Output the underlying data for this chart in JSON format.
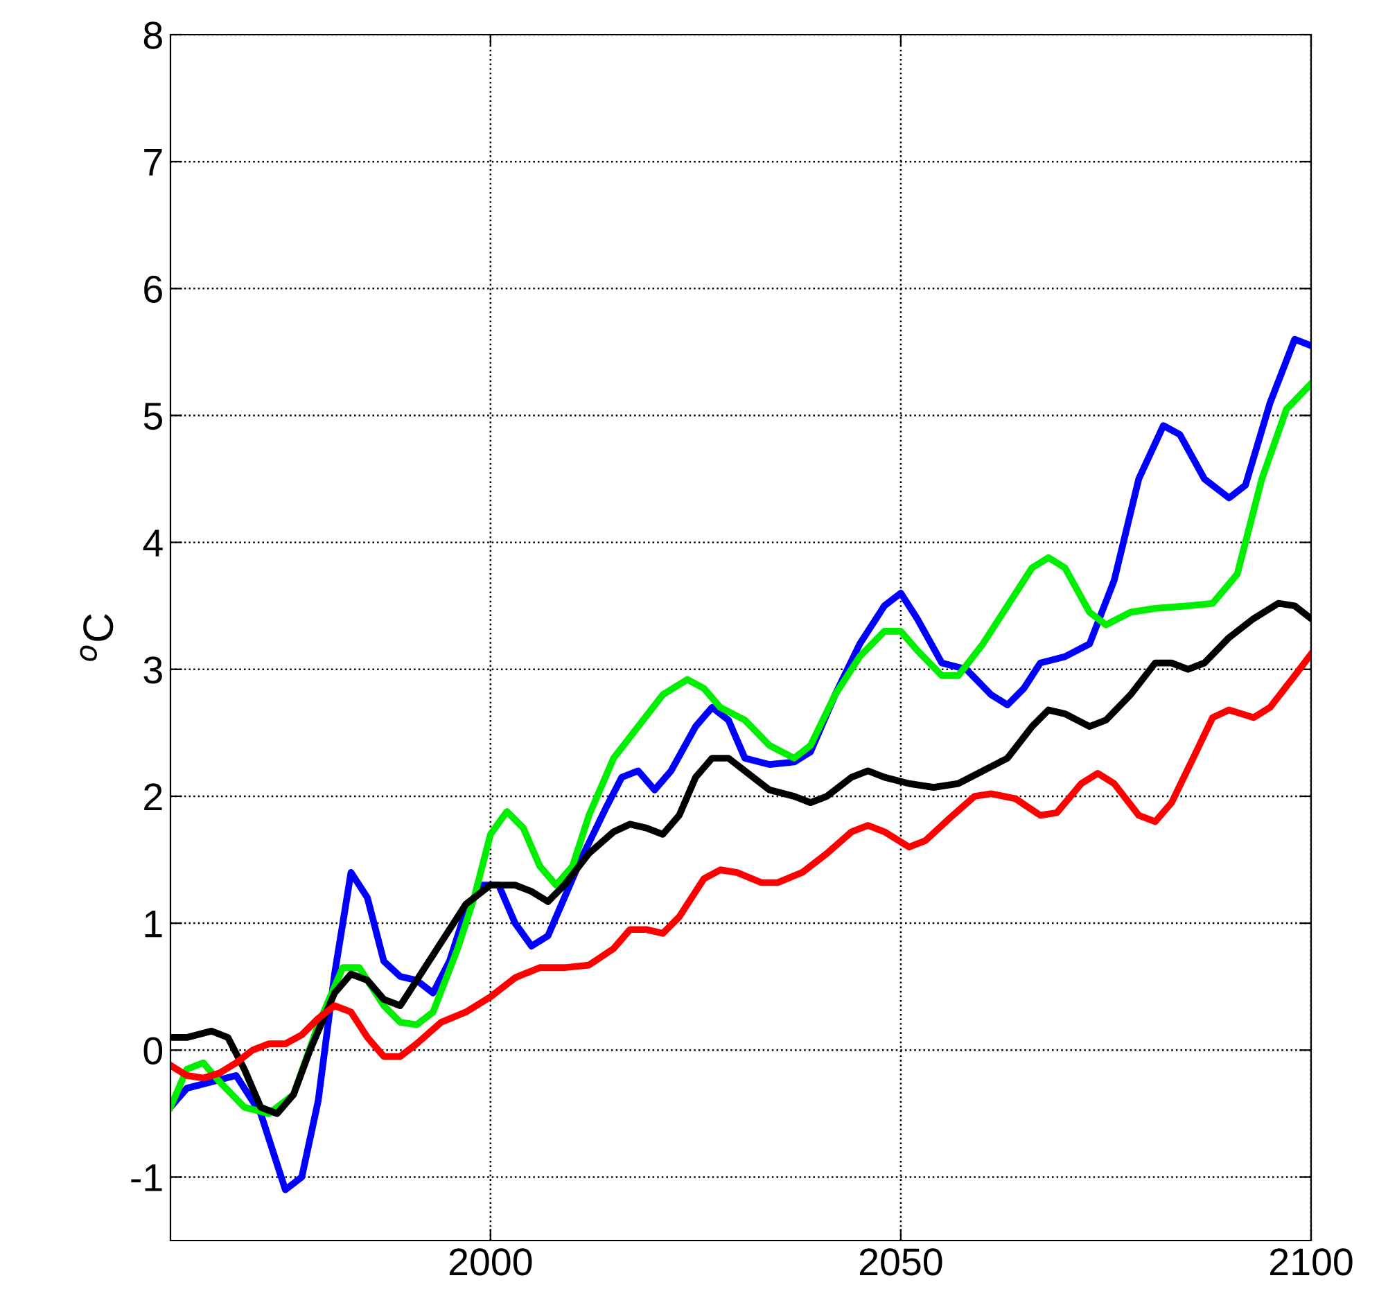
{
  "chart_data": {
    "type": "line",
    "ylabel": "$^{o}$C",
    "xlim": [
      1961,
      2100
    ],
    "ylim": [
      -1.5,
      8
    ],
    "xticks": [
      2000,
      2050,
      2100
    ],
    "yticks": [
      -1,
      0,
      1,
      2,
      3,
      4,
      5,
      6,
      7,
      8
    ],
    "grid": true,
    "line_style": "solid",
    "marker": "none",
    "series": [
      {
        "color": "#0000ff",
        "x": [
          1961,
          1963,
          1966,
          1969,
          1972,
          1975,
          1977,
          1979,
          1981,
          1983,
          1985,
          1987,
          1989,
          1991,
          1993,
          1995,
          1997,
          1999,
          2001,
          2003,
          2005,
          2007,
          2009,
          2011,
          2014,
          2016,
          2018,
          2020,
          2022,
          2025,
          2027,
          2029,
          2031,
          2034,
          2037,
          2039,
          2042,
          2045,
          2048,
          2050,
          2052,
          2055,
          2058,
          2061,
          2063,
          2065,
          2067,
          2070,
          2073,
          2076,
          2079,
          2082,
          2084,
          2087,
          2090,
          2092,
          2095,
          2098,
          2100
        ],
        "values": [
          -0.45,
          -0.3,
          -0.25,
          -0.2,
          -0.5,
          -1.1,
          -1.0,
          -0.4,
          0.6,
          1.4,
          1.2,
          0.7,
          0.58,
          0.55,
          0.45,
          0.7,
          1.1,
          1.3,
          1.3,
          1.0,
          0.82,
          0.9,
          1.2,
          1.5,
          1.9,
          2.15,
          2.2,
          2.05,
          2.2,
          2.55,
          2.7,
          2.6,
          2.3,
          2.25,
          2.27,
          2.35,
          2.8,
          3.2,
          3.5,
          3.6,
          3.4,
          3.05,
          3.0,
          2.8,
          2.72,
          2.85,
          3.05,
          3.1,
          3.2,
          3.7,
          4.5,
          4.92,
          4.85,
          4.5,
          4.35,
          4.45,
          5.1,
          5.6,
          5.55
        ]
      },
      {
        "color": "#00ee00",
        "x": [
          1961,
          1963,
          1965,
          1967,
          1970,
          1973,
          1976,
          1979,
          1982,
          1984,
          1987,
          1989,
          1991,
          1993,
          1996,
          1998,
          2000,
          2002,
          2004,
          2006,
          2008,
          2010,
          2012,
          2015,
          2018,
          2021,
          2024,
          2026,
          2028,
          2031,
          2034,
          2037,
          2039,
          2042,
          2045,
          2048,
          2050,
          2052,
          2055,
          2057,
          2060,
          2063,
          2066,
          2068,
          2070,
          2073,
          2075,
          2078,
          2081,
          2085,
          2088,
          2091,
          2094,
          2097,
          2100
        ],
        "values": [
          -0.45,
          -0.15,
          -0.1,
          -0.25,
          -0.45,
          -0.5,
          -0.35,
          0.2,
          0.65,
          0.65,
          0.35,
          0.22,
          0.2,
          0.3,
          0.8,
          1.2,
          1.7,
          1.88,
          1.75,
          1.45,
          1.3,
          1.45,
          1.85,
          2.3,
          2.55,
          2.8,
          2.92,
          2.85,
          2.7,
          2.6,
          2.4,
          2.3,
          2.4,
          2.8,
          3.1,
          3.3,
          3.3,
          3.15,
          2.95,
          2.95,
          3.2,
          3.5,
          3.8,
          3.88,
          3.8,
          3.45,
          3.35,
          3.45,
          3.48,
          3.5,
          3.52,
          3.75,
          4.5,
          5.05,
          5.25
        ]
      },
      {
        "color": "#000000",
        "x": [
          1961,
          1963,
          1966,
          1968,
          1970,
          1972,
          1974,
          1976,
          1978,
          1981,
          1983,
          1985,
          1987,
          1989,
          1991,
          1994,
          1997,
          2000,
          2003,
          2005,
          2007,
          2009,
          2012,
          2015,
          2017,
          2019,
          2021,
          2023,
          2025,
          2027,
          2029,
          2031,
          2034,
          2037,
          2039,
          2041,
          2044,
          2046,
          2048,
          2051,
          2054,
          2057,
          2060,
          2063,
          2066,
          2068,
          2070,
          2073,
          2075,
          2078,
          2081,
          2083,
          2085,
          2087,
          2090,
          2093,
          2096,
          2098,
          2100
        ],
        "values": [
          0.1,
          0.1,
          0.15,
          0.1,
          -0.15,
          -0.45,
          -0.5,
          -0.35,
          0.0,
          0.45,
          0.6,
          0.55,
          0.4,
          0.35,
          0.55,
          0.85,
          1.15,
          1.3,
          1.3,
          1.25,
          1.17,
          1.3,
          1.55,
          1.72,
          1.78,
          1.75,
          1.7,
          1.85,
          2.15,
          2.3,
          2.3,
          2.2,
          2.05,
          2.0,
          1.95,
          2.0,
          2.15,
          2.2,
          2.15,
          2.1,
          2.07,
          2.1,
          2.2,
          2.3,
          2.55,
          2.68,
          2.65,
          2.55,
          2.6,
          2.8,
          3.05,
          3.05,
          3.0,
          3.05,
          3.25,
          3.4,
          3.52,
          3.5,
          3.4
        ]
      },
      {
        "color": "#ff0000",
        "x": [
          1961,
          1963,
          1965,
          1967,
          1969,
          1971,
          1973,
          1975,
          1977,
          1979,
          1981,
          1983,
          1985,
          1987,
          1989,
          1991,
          1994,
          1997,
          2000,
          2003,
          2006,
          2009,
          2012,
          2015,
          2017,
          2019,
          2021,
          2023,
          2026,
          2028,
          2030,
          2033,
          2035,
          2038,
          2041,
          2044,
          2046,
          2048,
          2051,
          2053,
          2056,
          2059,
          2061,
          2064,
          2067,
          2069,
          2072,
          2074,
          2076,
          2079,
          2081,
          2083,
          2086,
          2088,
          2090,
          2093,
          2095,
          2098,
          2100
        ],
        "values": [
          -0.12,
          -0.2,
          -0.22,
          -0.18,
          -0.1,
          0.0,
          0.05,
          0.05,
          0.12,
          0.25,
          0.35,
          0.3,
          0.1,
          -0.05,
          -0.05,
          0.05,
          0.22,
          0.3,
          0.42,
          0.57,
          0.65,
          0.65,
          0.67,
          0.8,
          0.95,
          0.95,
          0.92,
          1.05,
          1.35,
          1.42,
          1.4,
          1.32,
          1.32,
          1.4,
          1.55,
          1.72,
          1.77,
          1.72,
          1.6,
          1.65,
          1.83,
          2.0,
          2.02,
          1.98,
          1.85,
          1.87,
          2.1,
          2.18,
          2.1,
          1.85,
          1.8,
          1.95,
          2.35,
          2.62,
          2.68,
          2.62,
          2.7,
          2.95,
          3.12
        ]
      }
    ]
  }
}
